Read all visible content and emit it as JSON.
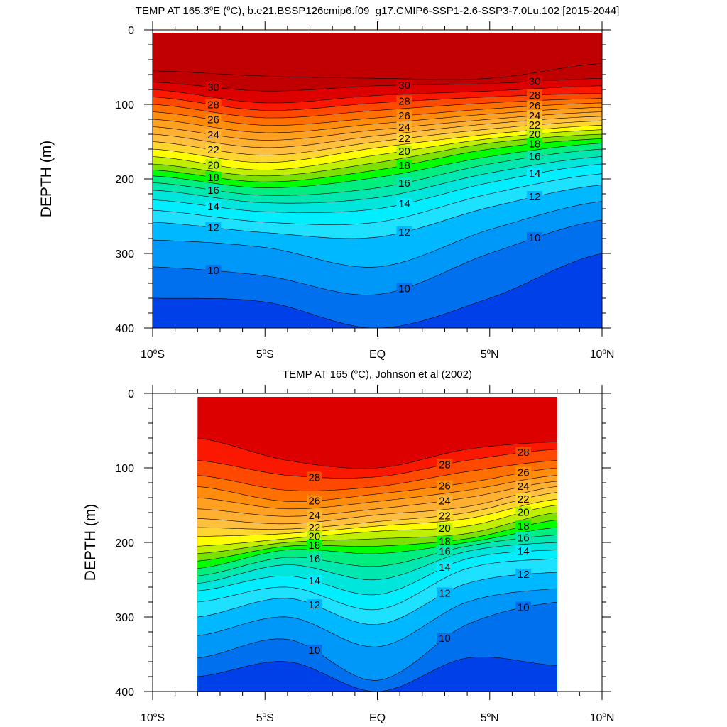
{
  "chart_data": [
    {
      "type": "heatmap",
      "subtype": "filled-contour",
      "title": "TEMP AT 165.3°E (°C), b.e21.BSSP126cmip6.f09_g17.CMIP6-SSP1-2.6-SSP3-7.0Lu.102 [2015-2044]",
      "xlabel": "",
      "ylabel": "DEPTH (m)",
      "xlim": [
        -10,
        10
      ],
      "ylim": [
        0,
        400
      ],
      "y_inverted": true,
      "x_tick_values": [
        -10,
        -5,
        0,
        5,
        10
      ],
      "x_tick_labels": [
        "10°S",
        "5°S",
        "EQ",
        "5°N",
        "10°N"
      ],
      "y_tick_values": [
        0,
        100,
        200,
        300,
        400
      ],
      "y_tick_labels": [
        "0",
        "100",
        "200",
        "300",
        "400"
      ],
      "data_xlim": [
        -10,
        10
      ],
      "contour_interval": 1,
      "x": [
        -10,
        -5,
        0,
        5,
        10
      ],
      "isotherm_depths": [
        {
          "temp": 31,
          "depth": [
            55,
            62,
            65,
            65,
            45
          ]
        },
        {
          "temp": 30,
          "depth": [
            70,
            82,
            75,
            72,
            65
          ]
        },
        {
          "temp": 29,
          "depth": [
            80,
            98,
            88,
            82,
            75
          ]
        },
        {
          "temp": 28,
          "depth": [
            90,
            108,
            98,
            90,
            85
          ]
        },
        {
          "temp": 27,
          "depth": [
            100,
            118,
            108,
            98,
            92
          ]
        },
        {
          "temp": 26,
          "depth": [
            110,
            128,
            118,
            106,
            98
          ]
        },
        {
          "temp": 25,
          "depth": [
            120,
            138,
            126,
            113,
            104
          ]
        },
        {
          "temp": 24,
          "depth": [
            130,
            148,
            134,
            120,
            110
          ]
        },
        {
          "temp": 23,
          "depth": [
            140,
            158,
            142,
            126,
            116
          ]
        },
        {
          "temp": 22,
          "depth": [
            150,
            168,
            150,
            133,
            122
          ]
        },
        {
          "temp": 21,
          "depth": [
            160,
            178,
            158,
            140,
            128
          ]
        },
        {
          "temp": 20,
          "depth": [
            170,
            188,
            168,
            146,
            134
          ]
        },
        {
          "temp": 19,
          "depth": [
            180,
            196,
            178,
            152,
            140
          ]
        },
        {
          "temp": 18,
          "depth": [
            188,
            204,
            188,
            160,
            146
          ]
        },
        {
          "temp": 17,
          "depth": [
            196,
            212,
            198,
            170,
            152
          ]
        },
        {
          "temp": 16,
          "depth": [
            205,
            222,
            212,
            180,
            160
          ]
        },
        {
          "temp": 15,
          "depth": [
            215,
            232,
            225,
            192,
            170
          ]
        },
        {
          "temp": 14,
          "depth": [
            228,
            244,
            240,
            205,
            180
          ]
        },
        {
          "temp": 13,
          "depth": [
            242,
            258,
            258,
            220,
            193
          ]
        },
        {
          "temp": 12,
          "depth": [
            258,
            272,
            278,
            238,
            208
          ]
        },
        {
          "temp": 11,
          "depth": [
            282,
            292,
            318,
            268,
            230
          ]
        },
        {
          "temp": 10,
          "depth": [
            318,
            330,
            355,
            300,
            255
          ]
        },
        {
          "temp": 9,
          "depth": [
            360,
            365,
            400,
            360,
            300
          ]
        }
      ],
      "labeled_contours": [
        30,
        28,
        26,
        24,
        22,
        20,
        18,
        16,
        14,
        12,
        10
      ]
    },
    {
      "type": "heatmap",
      "subtype": "filled-contour",
      "title": "TEMP AT 165 (°C), Johnson et al (2002)",
      "xlabel": "",
      "ylabel": "DEPTH (m)",
      "xlim": [
        -10,
        10
      ],
      "ylim": [
        0,
        400
      ],
      "y_inverted": true,
      "x_tick_values": [
        -10,
        -5,
        0,
        5,
        10
      ],
      "x_tick_labels": [
        "10°S",
        "5°S",
        "EQ",
        "5°N",
        "10°N"
      ],
      "y_tick_values": [
        0,
        100,
        200,
        300,
        400
      ],
      "y_tick_labels": [
        "0",
        "100",
        "200",
        "300",
        "400"
      ],
      "data_xlim": [
        -8,
        8
      ],
      "contour_interval": 1,
      "x": [
        -8,
        -4,
        0,
        4,
        8
      ],
      "isotherm_depths": [
        {
          "temp": 29,
          "depth": [
            60,
            90,
            100,
            75,
            65
          ]
        },
        {
          "temp": 28,
          "depth": [
            90,
            110,
            112,
            90,
            75
          ]
        },
        {
          "temp": 27,
          "depth": [
            110,
            130,
            125,
            105,
            90
          ]
        },
        {
          "temp": 26,
          "depth": [
            125,
            145,
            135,
            120,
            100
          ]
        },
        {
          "temp": 25,
          "depth": [
            140,
            155,
            145,
            130,
            110
          ]
        },
        {
          "temp": 24,
          "depth": [
            155,
            165,
            155,
            140,
            118
          ]
        },
        {
          "temp": 23,
          "depth": [
            168,
            175,
            163,
            152,
            125
          ]
        },
        {
          "temp": 22,
          "depth": [
            180,
            182,
            172,
            160,
            133
          ]
        },
        {
          "temp": 21,
          "depth": [
            192,
            188,
            178,
            168,
            142
          ]
        },
        {
          "temp": 20,
          "depth": [
            205,
            195,
            185,
            178,
            150
          ]
        },
        {
          "temp": 19,
          "depth": [
            215,
            200,
            195,
            188,
            160
          ]
        },
        {
          "temp": 18,
          "depth": [
            225,
            205,
            205,
            195,
            170
          ]
        },
        {
          "temp": 17,
          "depth": [
            235,
            210,
            215,
            200,
            180
          ]
        },
        {
          "temp": 16,
          "depth": [
            245,
            220,
            232,
            205,
            190
          ]
        },
        {
          "temp": 15,
          "depth": [
            255,
            230,
            250,
            212,
            200
          ]
        },
        {
          "temp": 14,
          "depth": [
            265,
            245,
            270,
            222,
            210
          ]
        },
        {
          "temp": 13,
          "depth": [
            280,
            260,
            290,
            235,
            222
          ]
        },
        {
          "temp": 12,
          "depth": [
            300,
            275,
            310,
            255,
            240
          ]
        },
        {
          "temp": 11,
          "depth": [
            325,
            300,
            340,
            280,
            262
          ]
        },
        {
          "temp": 10,
          "depth": [
            355,
            330,
            385,
            310,
            280
          ]
        },
        {
          "temp": 9,
          "depth": [
            380,
            360,
            400,
            355,
            365
          ]
        }
      ],
      "labeled_contours": [
        28,
        26,
        24,
        22,
        20,
        18,
        16,
        14,
        12,
        10
      ]
    }
  ],
  "palette": {
    "31": "#c00000",
    "30": "#dd0000",
    "29": "#fa1800",
    "28": "#ff4800",
    "27": "#ff7000",
    "26": "#ff8c0a",
    "25": "#ffa020",
    "24": "#ffb030",
    "23": "#ffc040",
    "22": "#ffd530",
    "21": "#ffff00",
    "20": "#c0f000",
    "19": "#7ce000",
    "18": "#00ff00",
    "17": "#00ee80",
    "16": "#00e8b0",
    "15": "#00e6dc",
    "14": "#00eeff",
    "13": "#1ee0ff",
    "12": "#00b8ff",
    "11": "#0098f8",
    "10": "#0070ef",
    "9": "#0040e8",
    "8": "#0018f0"
  }
}
